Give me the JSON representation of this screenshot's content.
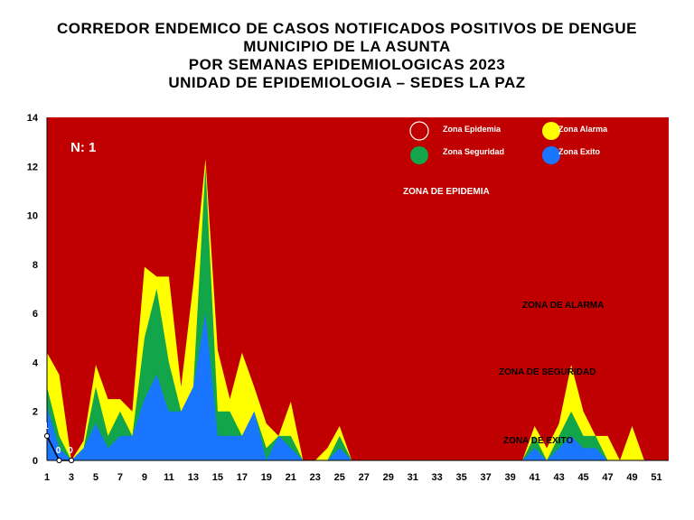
{
  "header": {
    "lines": [
      "CORREDOR ENDEMICO DE CASOS NOTIFICADOS POSITIVOS DE DENGUE",
      "MUNICIPIO DE LA ASUNTA",
      "POR SEMANAS EPIDEMIOLOGICAS 2023",
      "UNIDAD DE EPIDEMIOLOGIA – SEDES LA PAZ"
    ]
  },
  "colors": {
    "epidemia": "#C00000",
    "alarma": "#FFFF00",
    "seguridad": "#12A54A",
    "exito": "#1A75FF",
    "cases_line": "#000000"
  },
  "chart_data": {
    "type": "area",
    "title": "CORREDOR ENDEMICO DE CASOS NOTIFICADOS POSITIVOS DE DENGUE / MUNICIPIO DE LA ASUNTA / POR SEMANAS EPIDEMIOLOGICAS 2023 / UNIDAD DE EPIDEMIOLOGIA – SEDES LA PAZ",
    "xlabel": "",
    "ylabel": "",
    "ylim": [
      0,
      14
    ],
    "xlim": [
      1,
      52
    ],
    "y_ticks": [
      "0",
      "2",
      "4",
      "6",
      "8",
      "10",
      "12",
      "14"
    ],
    "x_ticks": [
      "1",
      "3",
      "5",
      "7",
      "9",
      "11",
      "13",
      "15",
      "17",
      "19",
      "21",
      "23",
      "25",
      "27",
      "29",
      "31",
      "33",
      "35",
      "37",
      "39",
      "41",
      "43",
      "45",
      "47",
      "49",
      "51"
    ],
    "x": [
      1,
      2,
      3,
      4,
      5,
      6,
      7,
      8,
      9,
      10,
      11,
      12,
      13,
      14,
      15,
      16,
      17,
      18,
      19,
      20,
      21,
      22,
      23,
      24,
      25,
      26,
      27,
      28,
      29,
      30,
      31,
      32,
      33,
      34,
      35,
      36,
      37,
      38,
      39,
      40,
      41,
      42,
      43,
      44,
      45,
      46,
      47,
      48,
      49,
      50,
      51,
      52
    ],
    "n_label": "N: 1",
    "zone_labels": {
      "epidemia": "ZONA DE EPIDEMIA",
      "alarma": "ZONA DE ALARMA",
      "seguridad": "ZONA DE  SEGURIDAD",
      "exito": "ZONA DE  EXITO"
    },
    "legend": {
      "placement": "top-right",
      "items": [
        {
          "label": "Zona Epidemia",
          "color_key": "epidemia"
        },
        {
          "label": "Zona Alarma",
          "color_key": "alarma"
        },
        {
          "label": "Zona Seguridad",
          "color_key": "seguridad"
        },
        {
          "label": "Zona Exito",
          "color_key": "exito"
        }
      ]
    },
    "series": [
      {
        "name": "Zona Alarma",
        "values": [
          4.4,
          3.5,
          0,
          0.8,
          3.9,
          2.5,
          2.5,
          2,
          7.9,
          7.5,
          7.5,
          3,
          7.2,
          12.3,
          4.5,
          2.5,
          4.4,
          3,
          1.5,
          1,
          2.4,
          0,
          0,
          0.5,
          1.4,
          0,
          0,
          0,
          0,
          0,
          0,
          0,
          0,
          0,
          0,
          0,
          0,
          0,
          0,
          0,
          1.4,
          0.5,
          1.5,
          3.9,
          2,
          1,
          1,
          0,
          1.4,
          0,
          0,
          0
        ]
      },
      {
        "name": "Zona Seguridad",
        "values": [
          3,
          1,
          0,
          0.5,
          3,
          1,
          2,
          1,
          5,
          7,
          4,
          2,
          3,
          12,
          2,
          2,
          1,
          2,
          0.5,
          1,
          1,
          0,
          0,
          0,
          1,
          0,
          0,
          0,
          0,
          0,
          0,
          0,
          0,
          0,
          0,
          0,
          0,
          0,
          0,
          0,
          1,
          0,
          1,
          2,
          1,
          1,
          0,
          0,
          0,
          0,
          0,
          0
        ]
      },
      {
        "name": "Zona Exito",
        "values": [
          2.2,
          0.5,
          0,
          0.5,
          1.5,
          0.5,
          1,
          1,
          2.5,
          3.5,
          2,
          2,
          3,
          6,
          1,
          1,
          1,
          2,
          0,
          1,
          0.5,
          0,
          0,
          0,
          0.5,
          0,
          0,
          0,
          0,
          0,
          0,
          0,
          0,
          0,
          0,
          0,
          0,
          0,
          0,
          0,
          0.5,
          0,
          0.5,
          1,
          0.5,
          0.5,
          0,
          0,
          0,
          0,
          0,
          0
        ]
      },
      {
        "name": "Casos",
        "x": [
          1,
          2,
          3
        ],
        "values": [
          1,
          0,
          0
        ],
        "point_labels": [
          "1",
          "0",
          "0"
        ]
      }
    ],
    "grid": false
  }
}
